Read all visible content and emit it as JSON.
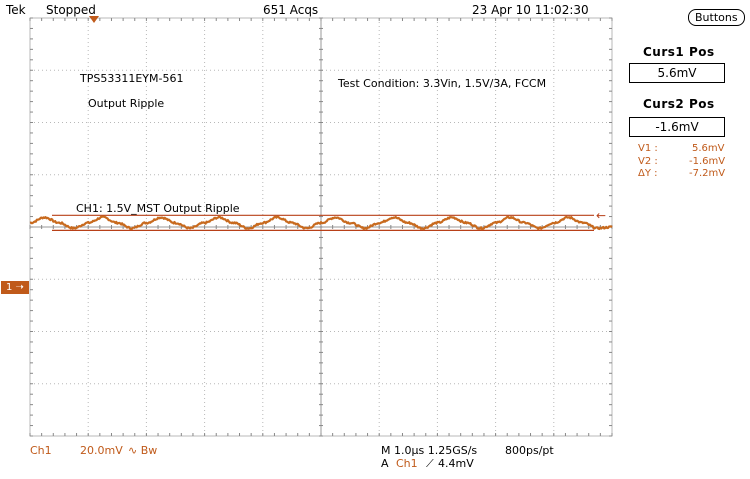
{
  "top_bar": {
    "brand": "Tek",
    "status": "Stopped",
    "acqs": "651 Acqs",
    "datetime": "23 Apr 10 11:02:30",
    "buttons_label": "Buttons"
  },
  "annotations": {
    "part": "TPS53311EYM-561",
    "subject": "Output Ripple",
    "condition": "Test Condition: 3.3Vin, 1.5V/3A, FCCM",
    "channel_desc": "CH1: 1.5V_MST Output Ripple"
  },
  "side_panel": {
    "curs1_title": "Curs1 Pos",
    "curs1_value": "5.6mV",
    "curs2_title": "Curs2 Pos",
    "curs2_value": "-1.6mV",
    "v1_label": "V1 :",
    "v1_value": "5.6mV",
    "v2_label": "V2 :",
    "v2_value": "-1.6mV",
    "dv_label": "ΔY :",
    "dv_value": "-7.2mV"
  },
  "bottom_bar": {
    "ch": "Ch1",
    "scale": "20.0mV",
    "coupling": "∿ Bw",
    "timebase": "M 1.0µs 1.25GS/s",
    "sample": "800ps/pt",
    "trigger_prefix": "A",
    "trigger_ch": "Ch1",
    "trigger_slope": "⟋",
    "trigger_level": "4.4mV",
    "ch_marker": "1"
  },
  "colors": {
    "trace": "#c86a1e",
    "cursor": "#b84018",
    "grid": "#b8b8b8",
    "label": "#c05a1a"
  },
  "chart_data": {
    "type": "line",
    "title": "",
    "xlabel": "",
    "ylabel": "",
    "x_divisions": 10,
    "y_divisions": 8,
    "time_per_div_us": 1.0,
    "volts_per_div_mV": 20.0,
    "xlim_us": [
      0,
      10
    ],
    "ylim_mV": [
      -100,
      100
    ],
    "grid": true,
    "ripple_period_us": 1.0,
    "series": [
      {
        "x": [
          0,
          0.25,
          0.5,
          0.75,
          1.0,
          1.25,
          1.5,
          1.75,
          2.0,
          2.25,
          2.5,
          2.75,
          3.0,
          3.25,
          3.5,
          3.75,
          4.0,
          4.25,
          4.5,
          4.75,
          5.0,
          5.25,
          5.5,
          5.75,
          6.0,
          6.25,
          6.5,
          6.75,
          7.0,
          7.25,
          7.5,
          7.75,
          8.0,
          8.25,
          8.5,
          8.75,
          9.0,
          9.25,
          9.5,
          9.75,
          10.0
        ],
        "y": [
          2.0,
          4.6,
          2.0,
          -0.6,
          2.0,
          4.6,
          2.0,
          -0.6,
          2.0,
          4.6,
          2.0,
          -0.6,
          2.0,
          4.6,
          2.0,
          -0.6,
          2.0,
          4.6,
          2.0,
          -0.6,
          2.0,
          4.6,
          2.0,
          -0.6,
          2.0,
          4.6,
          2.0,
          -0.6,
          2.0,
          4.6,
          2.0,
          -0.6,
          2.0,
          4.6,
          2.0,
          -0.6,
          2.0,
          4.6,
          2.0,
          -0.6,
          0.0
        ]
      }
    ],
    "cursors_mV": [
      5.6,
      -1.6
    ]
  }
}
